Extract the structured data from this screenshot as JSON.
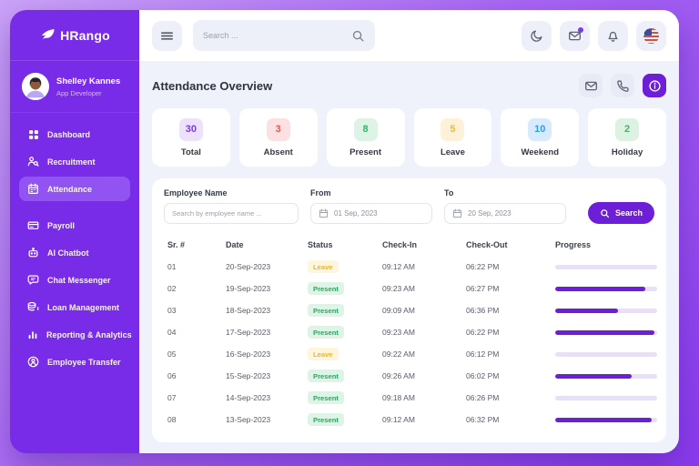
{
  "brand": {
    "name": "HRango"
  },
  "user": {
    "name": "Shelley Kannes",
    "role": "App Developer"
  },
  "sidebar": {
    "items": [
      {
        "label": "Dashboard",
        "icon": "dashboard",
        "active": false
      },
      {
        "label": "Recruitment",
        "icon": "recruitment",
        "active": false
      },
      {
        "label": "Attendance",
        "icon": "attendance",
        "active": true
      },
      {
        "label": "Payroll",
        "icon": "payroll",
        "active": false,
        "gap_before": true
      },
      {
        "label": "AI Chatbot",
        "icon": "ai-chatbot",
        "active": false
      },
      {
        "label": "Chat Messenger",
        "icon": "chat-messenger",
        "active": false
      },
      {
        "label": "Loan Management",
        "icon": "loan-management",
        "active": false
      },
      {
        "label": "Reporting & Analytics",
        "icon": "reporting-analytics",
        "active": false
      },
      {
        "label": "Employee Transfer",
        "icon": "employee-transfer",
        "active": false
      }
    ]
  },
  "topbar": {
    "search_placeholder": "Search ...",
    "actions": [
      {
        "icon": "moon"
      },
      {
        "icon": "mail",
        "badge": true
      },
      {
        "icon": "bell"
      },
      {
        "icon": "flag"
      }
    ]
  },
  "header": {
    "title": "Attendance Overview",
    "actions": [
      {
        "icon": "mail"
      },
      {
        "icon": "phone"
      },
      {
        "icon": "info",
        "primary": true
      }
    ]
  },
  "stats": [
    {
      "value": "30",
      "label": "Total",
      "fg": "#7c3aed",
      "bg": "#ece2fc"
    },
    {
      "value": "3",
      "label": "Absent",
      "fg": "#ef5350",
      "bg": "#fce1e3"
    },
    {
      "value": "8",
      "label": "Present",
      "fg": "#2eb567",
      "bg": "#dcf3e6"
    },
    {
      "value": "5",
      "label": "Leave",
      "fg": "#f2b63c",
      "bg": "#fdf2d9"
    },
    {
      "value": "10",
      "label": "Weekend",
      "fg": "#2e9bf5",
      "bg": "#d9eafd"
    },
    {
      "value": "2",
      "label": "Holiday",
      "fg": "#4caf73",
      "bg": "#ddf2e2"
    }
  ],
  "filters": {
    "employee": {
      "label": "Employee Name",
      "placeholder": "Search by employee name ..."
    },
    "from": {
      "label": "From",
      "value": "01 Sep, 2023"
    },
    "to": {
      "label": "To",
      "value": "20 Sep, 2023"
    },
    "search_label": "Search"
  },
  "table": {
    "columns": [
      "Sr. #",
      "Date",
      "Status",
      "Check-In",
      "Check-Out",
      "Progress"
    ],
    "rows": [
      {
        "sr": "01",
        "date": "20-Sep-2023",
        "status": "Leave",
        "checkin": "09:12 AM",
        "checkout": "06:22 PM",
        "progress": 0
      },
      {
        "sr": "02",
        "date": "19-Sep-2023",
        "status": "Present",
        "checkin": "09:23 AM",
        "checkout": "06:27 PM",
        "progress": 88
      },
      {
        "sr": "03",
        "date": "18-Sep-2023",
        "status": "Present",
        "checkin": "09:09 AM",
        "checkout": "06:36 PM",
        "progress": 62
      },
      {
        "sr": "04",
        "date": "17-Sep-2023",
        "status": "Present",
        "checkin": "09:23 AM",
        "checkout": "06:22 PM",
        "progress": 97
      },
      {
        "sr": "05",
        "date": "16-Sep-2023",
        "status": "Leave",
        "checkin": "09:22 AM",
        "checkout": "06:12 PM",
        "progress": 0
      },
      {
        "sr": "06",
        "date": "15-Sep-2023",
        "status": "Present",
        "checkin": "09:26 AM",
        "checkout": "06:02 PM",
        "progress": 75
      },
      {
        "sr": "07",
        "date": "14-Sep-2023",
        "status": "Present",
        "checkin": "09:18 AM",
        "checkout": "06:26 PM",
        "progress": 0
      },
      {
        "sr": "08",
        "date": "13-Sep-2023",
        "status": "Present",
        "checkin": "09:12 AM",
        "checkout": "06:32 PM",
        "progress": 95
      }
    ]
  },
  "colors": {
    "accent": "#6d1fd8",
    "sidebar": "#792ce8",
    "content_bg": "#f0f2fb"
  }
}
